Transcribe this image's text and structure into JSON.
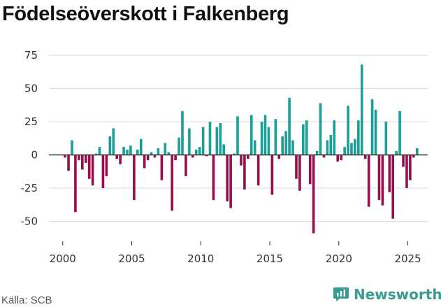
{
  "chart_data": {
    "type": "bar",
    "title": "Födelseöverskott i Falkenberg",
    "xlabel": "",
    "ylabel": "",
    "ylim": [
      -65,
      85
    ],
    "xlim": [
      1999.0,
      2027.2
    ],
    "yticks": [
      -50,
      -25,
      0,
      25,
      50,
      75
    ],
    "xticks": [
      2000,
      2005,
      2010,
      2015,
      2020,
      2025
    ],
    "positive_color": "#1a9e96",
    "negative_color": "#990e4a",
    "monthly_bars": [
      {
        "x": 2000.17,
        "value": -2
      },
      {
        "x": 2000.42,
        "value": -12
      },
      {
        "x": 2000.67,
        "value": 11
      },
      {
        "x": 2000.92,
        "value": -43
      },
      {
        "x": 2001.17,
        "value": -4
      },
      {
        "x": 2001.42,
        "value": -11
      },
      {
        "x": 2001.67,
        "value": -6
      },
      {
        "x": 2001.92,
        "value": -18
      },
      {
        "x": 2002.17,
        "value": -23
      },
      {
        "x": 2002.42,
        "value": 1
      },
      {
        "x": 2002.67,
        "value": 6
      },
      {
        "x": 2002.92,
        "value": -25
      },
      {
        "x": 2003.17,
        "value": -16
      },
      {
        "x": 2003.42,
        "value": 14
      },
      {
        "x": 2003.67,
        "value": 20
      },
      {
        "x": 2003.92,
        "value": -3
      },
      {
        "x": 2004.17,
        "value": -7
      },
      {
        "x": 2004.42,
        "value": 6
      },
      {
        "x": 2004.67,
        "value": 4
      },
      {
        "x": 2004.92,
        "value": 7
      },
      {
        "x": 2005.17,
        "value": -34
      },
      {
        "x": 2005.42,
        "value": 4
      },
      {
        "x": 2005.67,
        "value": 12
      },
      {
        "x": 2005.92,
        "value": -10
      },
      {
        "x": 2006.17,
        "value": -4
      },
      {
        "x": 2006.42,
        "value": 2
      },
      {
        "x": 2006.67,
        "value": -2
      },
      {
        "x": 2006.92,
        "value": 5
      },
      {
        "x": 2007.17,
        "value": -19
      },
      {
        "x": 2007.42,
        "value": 9
      },
      {
        "x": 2007.67,
        "value": 2
      },
      {
        "x": 2007.92,
        "value": -42
      },
      {
        "x": 2008.17,
        "value": -4
      },
      {
        "x": 2008.42,
        "value": 13
      },
      {
        "x": 2008.67,
        "value": 33
      },
      {
        "x": 2008.92,
        "value": -16
      },
      {
        "x": 2009.17,
        "value": 20
      },
      {
        "x": 2009.42,
        "value": -2
      },
      {
        "x": 2009.67,
        "value": 4
      },
      {
        "x": 2009.92,
        "value": 6
      },
      {
        "x": 2010.17,
        "value": 21
      },
      {
        "x": 2010.42,
        "value": -1
      },
      {
        "x": 2010.67,
        "value": 25
      },
      {
        "x": 2010.92,
        "value": -34
      },
      {
        "x": 2011.17,
        "value": 21
      },
      {
        "x": 2011.42,
        "value": 24
      },
      {
        "x": 2011.67,
        "value": 8
      },
      {
        "x": 2011.92,
        "value": -35
      },
      {
        "x": 2012.17,
        "value": -40
      },
      {
        "x": 2012.42,
        "value": 1
      },
      {
        "x": 2012.67,
        "value": 29
      },
      {
        "x": 2012.92,
        "value": -8
      },
      {
        "x": 2013.17,
        "value": -26
      },
      {
        "x": 2013.42,
        "value": -3
      },
      {
        "x": 2013.67,
        "value": 30
      },
      {
        "x": 2013.92,
        "value": 11
      },
      {
        "x": 2014.17,
        "value": -23
      },
      {
        "x": 2014.42,
        "value": 25
      },
      {
        "x": 2014.67,
        "value": 30
      },
      {
        "x": 2014.92,
        "value": 21
      },
      {
        "x": 2015.17,
        "value": -30
      },
      {
        "x": 2015.42,
        "value": 27
      },
      {
        "x": 2015.67,
        "value": -3
      },
      {
        "x": 2015.92,
        "value": 14
      },
      {
        "x": 2016.17,
        "value": 18
      },
      {
        "x": 2016.42,
        "value": 43
      },
      {
        "x": 2016.67,
        "value": 11
      },
      {
        "x": 2016.92,
        "value": -18
      },
      {
        "x": 2017.17,
        "value": -27
      },
      {
        "x": 2017.42,
        "value": 23
      },
      {
        "x": 2017.67,
        "value": 26
      },
      {
        "x": 2017.92,
        "value": -22
      },
      {
        "x": 2018.17,
        "value": -59
      },
      {
        "x": 2018.42,
        "value": 3
      },
      {
        "x": 2018.67,
        "value": 39
      },
      {
        "x": 2018.92,
        "value": -2
      },
      {
        "x": 2019.17,
        "value": 11
      },
      {
        "x": 2019.42,
        "value": 15
      },
      {
        "x": 2019.67,
        "value": 26
      },
      {
        "x": 2019.92,
        "value": -5
      },
      {
        "x": 2020.17,
        "value": -4
      },
      {
        "x": 2020.42,
        "value": 6
      },
      {
        "x": 2020.67,
        "value": 37
      },
      {
        "x": 2020.92,
        "value": 9
      },
      {
        "x": 2021.17,
        "value": 12
      },
      {
        "x": 2021.42,
        "value": 26
      },
      {
        "x": 2021.67,
        "value": 68
      },
      {
        "x": 2021.92,
        "value": -3
      },
      {
        "x": 2022.17,
        "value": -39
      },
      {
        "x": 2022.42,
        "value": 42
      },
      {
        "x": 2022.67,
        "value": 34
      },
      {
        "x": 2022.92,
        "value": -34
      },
      {
        "x": 2023.17,
        "value": -38
      },
      {
        "x": 2023.42,
        "value": 25
      },
      {
        "x": 2023.67,
        "value": -28
      },
      {
        "x": 2023.92,
        "value": -48
      },
      {
        "x": 2024.17,
        "value": 3
      },
      {
        "x": 2024.42,
        "value": 33
      },
      {
        "x": 2024.67,
        "value": -9
      },
      {
        "x": 2024.92,
        "value": -25
      },
      {
        "x": 2025.17,
        "value": -19
      },
      {
        "x": 2025.42,
        "value": -2
      },
      {
        "x": 2025.67,
        "value": 5
      }
    ]
  },
  "footer": {
    "source": "Källa: SCB",
    "brand": "Newsworthy"
  },
  "brand_icon": "newsworthy-chat-bar-icon"
}
